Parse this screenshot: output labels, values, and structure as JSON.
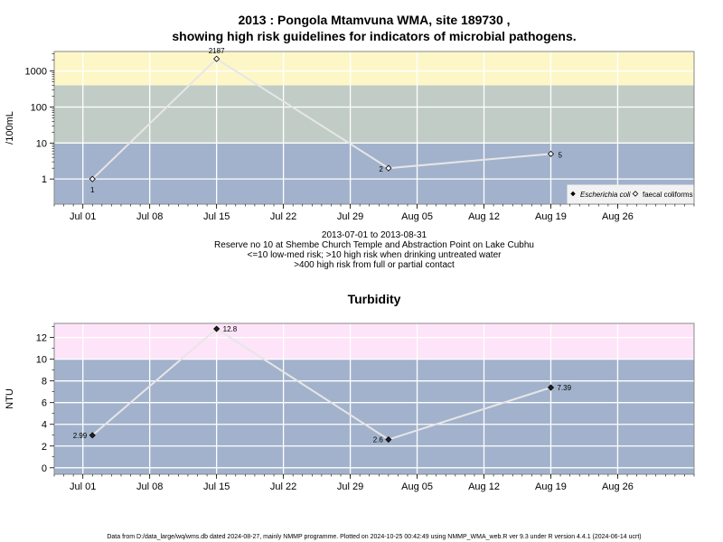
{
  "header": {
    "title_line1": "2013 : Pongola Mtamvuna WMA, site 189730 ,",
    "title_line2": "showing high risk guidelines for indicators of microbial pathogens."
  },
  "x_axis_ticks": [
    "Jul 01",
    "Jul 08",
    "Jul 15",
    "Jul 22",
    "Jul 29",
    "Aug 05",
    "Aug 12",
    "Aug 19",
    "Aug 26"
  ],
  "caption": {
    "line1": "2013-07-01 to 2013-08-31",
    "line2": "Reserve no 10 at Shembe Church Temple and Abstraction Point on Lake Cubhu",
    "line3": "<=10 low-med risk; >10 high risk when drinking untreated water",
    "line4": ">400 high risk from full or partial contact"
  },
  "footer": {
    "text": "Data from D:/data_large/wq/wms.db dated 2024-08-27, mainly NMMP programme. Plotted on 2024-10-25 00:42:49 using NMMP_WMA_web.R ver 9.3 under R version 4.4.1 (2024-06-14 ucrt)"
  },
  "colors": {
    "band_low": "#a2b2cc",
    "band_mid": "#c2ccc6",
    "band_high_micro": "#fdf7c8",
    "band_high_turb": "#fde4f8",
    "line": "#e6e6e6",
    "grid": "#ffffff"
  },
  "chart_data": [
    {
      "type": "line",
      "title": "",
      "xlabel": "",
      "ylabel": "/100mL",
      "y_scale": "log",
      "ylim": [
        0.2,
        3500
      ],
      "y_ticks": [
        1,
        10,
        100,
        1000
      ],
      "x_range": [
        "2013-06-28",
        "2013-09-03"
      ],
      "legend_position": "bottom-right",
      "series": [
        {
          "name": "Escherichia coli",
          "marker": "filled-diamond",
          "points": []
        },
        {
          "name": "faecal coliforms",
          "marker": "open-diamond",
          "points": [
            {
              "x": "2013-07-02",
              "y": 1,
              "label": "1"
            },
            {
              "x": "2013-07-15",
              "y": 2187,
              "label": "2187"
            },
            {
              "x": "2013-08-02",
              "y": 2,
              "label": "2"
            },
            {
              "x": "2013-08-19",
              "y": 5,
              "label": "5"
            }
          ]
        }
      ],
      "guideline_bands": [
        {
          "from": 0.2,
          "to": 10,
          "risk": "low-med"
        },
        {
          "from": 10,
          "to": 400,
          "risk": "high (drinking untreated water)"
        },
        {
          "from": 400,
          "to": 3500,
          "risk": "high (full or partial contact)"
        }
      ]
    },
    {
      "type": "line",
      "title": "Turbidity",
      "xlabel": "",
      "ylabel": "NTU",
      "ylim": [
        -0.6,
        13.3
      ],
      "y_ticks": [
        0,
        2,
        4,
        6,
        8,
        10,
        12
      ],
      "x_range": [
        "2013-06-28",
        "2013-09-03"
      ],
      "series": [
        {
          "name": "",
          "marker": "filled-diamond",
          "points": [
            {
              "x": "2013-07-02",
              "y": 2.99,
              "label": "2.99"
            },
            {
              "x": "2013-07-15",
              "y": 12.8,
              "label": "12.8"
            },
            {
              "x": "2013-08-02",
              "y": 2.6,
              "label": "2.6"
            },
            {
              "x": "2013-08-19",
              "y": 7.39,
              "label": "7.39"
            }
          ]
        }
      ],
      "guideline_bands": [
        {
          "from": -0.6,
          "to": 10,
          "risk": "low"
        },
        {
          "from": 10,
          "to": 13.3,
          "risk": "high"
        }
      ]
    }
  ]
}
